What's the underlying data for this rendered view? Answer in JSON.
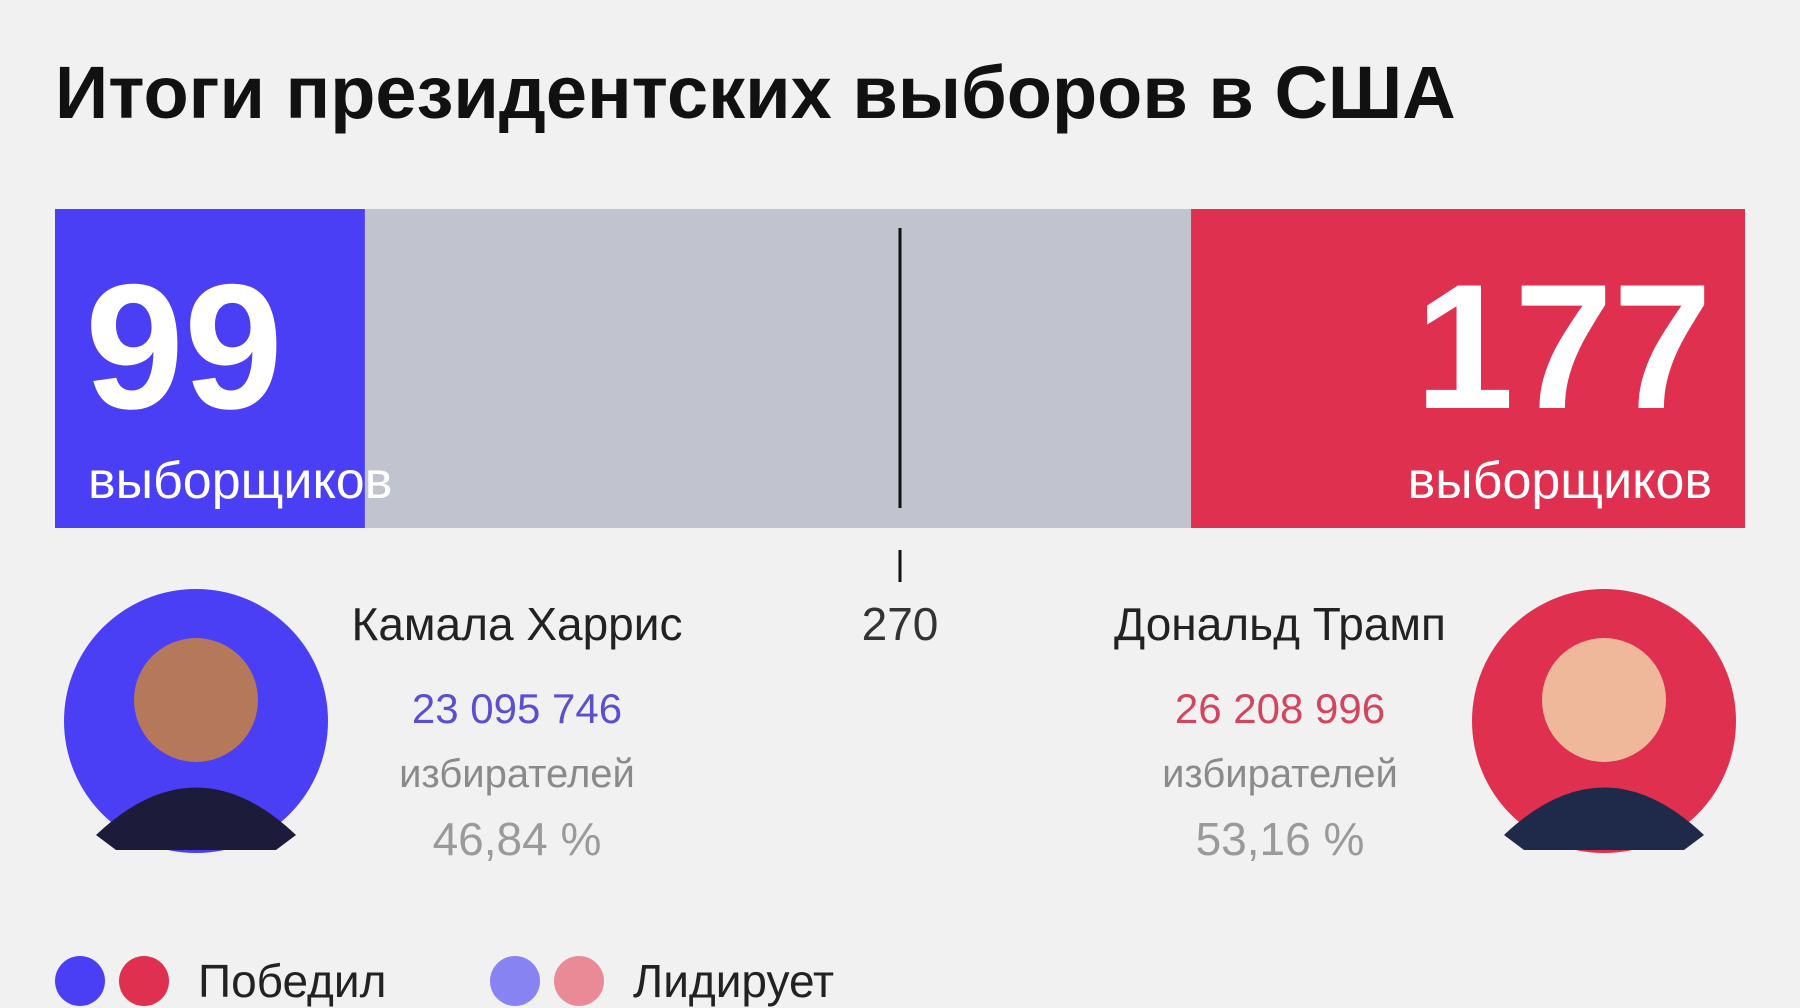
{
  "title": "Итоги президентских выборов в США",
  "threshold": 270,
  "bar_color": "#c1c4cf",
  "candidates": [
    {
      "name": "Камала Харрис",
      "electors": 99,
      "electors_label": "выборщиков",
      "votes": "23 095 746",
      "votes_label": "избирателей",
      "percent": "46,84 %",
      "color": "#4b3ff6",
      "votes_color": "#5a4fd0"
    },
    {
      "name": "Дональд Трамп",
      "electors": 177,
      "electors_label": "выборщиков",
      "votes": "26 208 996",
      "votes_label": "избирателей",
      "percent": "53,16 %",
      "color": "#e0304f",
      "votes_color": "#d3445e"
    }
  ],
  "legend": [
    {
      "label": "Победил",
      "colors": [
        "#4b3ff6",
        "#e0304f"
      ]
    },
    {
      "label": "Лидирует",
      "colors": [
        "#8783f2",
        "#ea8a96"
      ]
    }
  ]
}
